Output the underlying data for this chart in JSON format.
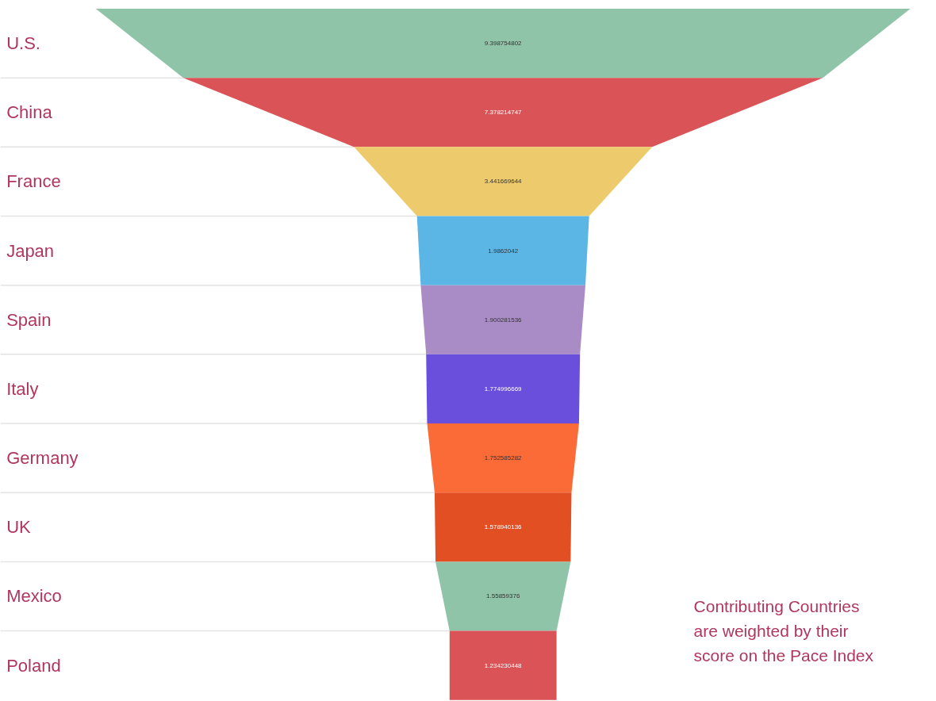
{
  "chart_data": {
    "type": "other",
    "categories": [
      "U.S.",
      "China",
      "France",
      "Japan",
      "Spain",
      "Italy",
      "Germany",
      "UK",
      "Mexico",
      "Poland"
    ],
    "values": [
      9.398754802,
      7.378214747,
      3.441669644,
      1.9862042,
      1.900281536,
      1.774996669,
      1.752585282,
      1.578940136,
      1.55859376,
      1.234230448
    ],
    "colors": [
      "#8fc4a8",
      "#da5356",
      "#edca6b",
      "#5bb5e5",
      "#a98cc6",
      "#6a4fdc",
      "#fb6b37",
      "#e24f22",
      "#8fc4a8",
      "#da5356"
    ],
    "data_labels": true,
    "annotations": [
      "Contributing Countries are weighted by their score on the Pace Index"
    ]
  }
}
